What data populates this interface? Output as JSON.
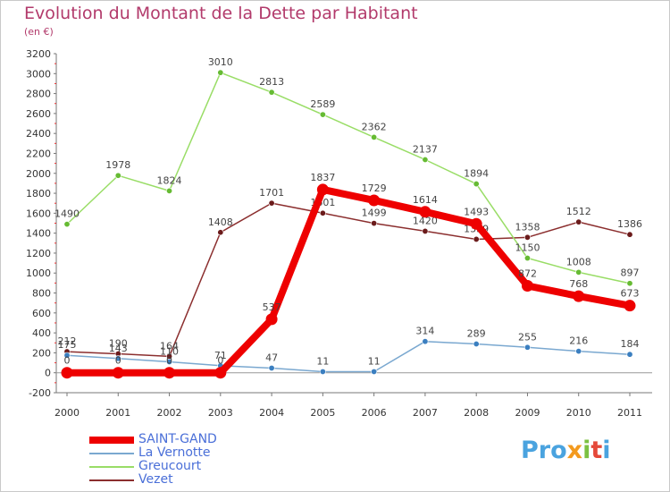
{
  "title": "Evolution du Montant de la Dette par Habitant",
  "subtitle": "(en €)",
  "logo": "Proxiti",
  "chart_data": {
    "type": "line",
    "title": "Evolution du Montant de la Dette par Habitant",
    "subtitle": "(en €)",
    "xlabel": "",
    "ylabel": "",
    "x": [
      "2000",
      "2001",
      "2002",
      "2003",
      "2004",
      "2005",
      "2006",
      "2007",
      "2008",
      "2009",
      "2010",
      "2011"
    ],
    "ylim": [
      -200,
      3200
    ],
    "yticks": [
      -200,
      0,
      200,
      400,
      600,
      800,
      1000,
      1200,
      1400,
      1600,
      1800,
      2000,
      2200,
      2400,
      2600,
      2800,
      3000,
      3200
    ],
    "grid": false,
    "legend_position": "bottom-left",
    "series": [
      {
        "name": "Vezet",
        "color": "#8b2e2e",
        "dot": "#6b1b1b",
        "values": [
          212,
          190,
          164,
          1408,
          1701,
          1601,
          1499,
          1420,
          1339,
          1358,
          1512,
          1386
        ],
        "labels": [
          "212",
          "190",
          "164",
          "1408",
          "1701",
          "1601",
          "1499",
          "1420",
          "1339",
          "1358",
          "1512",
          "1386"
        ]
      },
      {
        "name": "Greucourt",
        "color": "#99dd66",
        "dot": "#66bb33",
        "values": [
          1490,
          1978,
          1824,
          3010,
          2813,
          2589,
          2362,
          2137,
          1894,
          1150,
          1008,
          897
        ],
        "labels": [
          "1490",
          "1978",
          "1824",
          "3010",
          "2813",
          "2589",
          "2362",
          "2137",
          "1894",
          "1150",
          "1008",
          "897"
        ]
      },
      {
        "name": "La Vernotte",
        "color": "#7aa8d0",
        "dot": "#3b7fc0",
        "values": [
          175,
          143,
          110,
          71,
          47,
          11,
          11,
          314,
          289,
          255,
          216,
          184
        ],
        "labels": [
          "175",
          "143",
          "110",
          "71",
          "47",
          "11",
          "11",
          "314",
          "289",
          "255",
          "216",
          "184"
        ]
      },
      {
        "name": "SAINT-GAND",
        "color": "#ee0000",
        "dot": "#ee0000",
        "values": [
          0,
          0,
          0,
          0,
          537,
          1837,
          1729,
          1614,
          1493,
          872,
          768,
          673
        ],
        "labels": [
          "0",
          "0",
          "0",
          "0",
          "537",
          "1837",
          "1729",
          "1614",
          "1493",
          "872",
          "768",
          "673"
        ]
      }
    ]
  },
  "legend": [
    {
      "name": "SAINT-GAND",
      "color": "#ee0000",
      "width": 8
    },
    {
      "name": "La Vernotte",
      "color": "#7aa8d0",
      "width": 2
    },
    {
      "name": "Greucourt",
      "color": "#99dd66",
      "width": 2
    },
    {
      "name": "Vezet",
      "color": "#8b2e2e",
      "width": 2
    }
  ]
}
